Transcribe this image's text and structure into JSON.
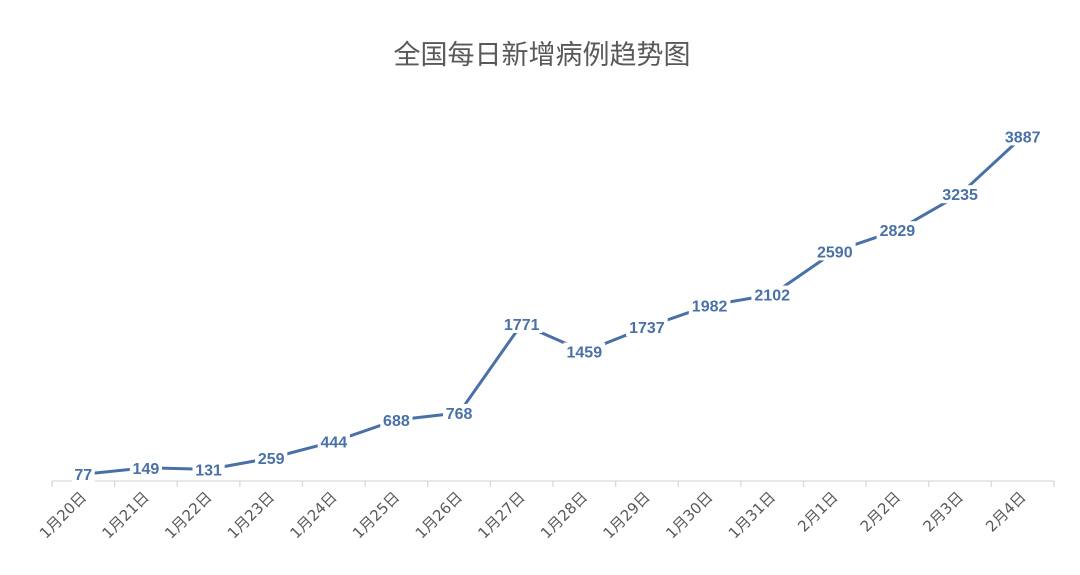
{
  "chart_data": {
    "type": "line",
    "title": "全国每日新增病例趋势图",
    "categories": [
      "1月20日",
      "1月21日",
      "1月22日",
      "1月23日",
      "1月24日",
      "1月25日",
      "1月26日",
      "1月27日",
      "1月28日",
      "1月29日",
      "1月30日",
      "1月31日",
      "2月1日",
      "2月2日",
      "2月3日",
      "2月4日"
    ],
    "series": [
      {
        "values": [
          77,
          149,
          131,
          259,
          444,
          688,
          768,
          1771,
          1459,
          1737,
          1982,
          2102,
          2590,
          2829,
          3235,
          3887
        ]
      }
    ],
    "ylim": [
      0,
      4500
    ],
    "grid": false,
    "legend": "none",
    "line_color": "#4a70a8",
    "axis_color": "#d9d9d9",
    "text_color": "#595959"
  }
}
